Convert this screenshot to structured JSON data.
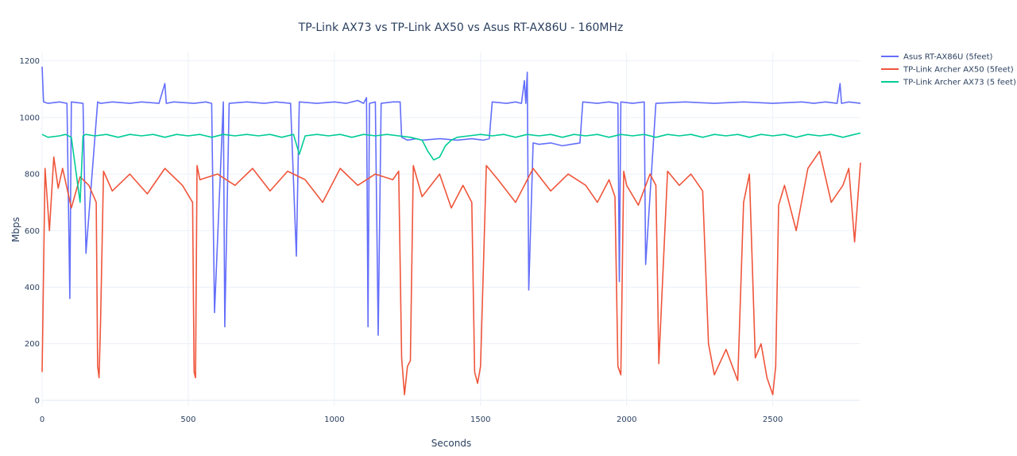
{
  "chart_data": {
    "type": "line",
    "title": "TP-Link AX73 vs TP-Link AX50 vs Asus RT-AX86U - 160MHz",
    "xlabel": "Seconds",
    "ylabel": "Mbps",
    "xlim": [
      0,
      2800
    ],
    "ylim": [
      -20,
      1230
    ],
    "xticks": [
      0,
      500,
      1000,
      1500,
      2000,
      2500
    ],
    "yticks": [
      0,
      200,
      400,
      600,
      800,
      1000,
      1200
    ],
    "grid": true,
    "legend_position": "top-right",
    "series": [
      {
        "name": "Asus RT-AX86U (5feet)",
        "color": "#636efa",
        "x": [
          0,
          5,
          20,
          60,
          85,
          95,
          100,
          140,
          150,
          190,
          200,
          240,
          300,
          340,
          400,
          420,
          425,
          450,
          520,
          560,
          580,
          590,
          620,
          625,
          640,
          700,
          760,
          800,
          850,
          870,
          880,
          940,
          1000,
          1040,
          1080,
          1100,
          1110,
          1115,
          1120,
          1140,
          1150,
          1160,
          1200,
          1225,
          1230,
          1250,
          1280,
          1300,
          1360,
          1420,
          1470,
          1510,
          1530,
          1540,
          1590,
          1620,
          1640,
          1650,
          1655,
          1660,
          1665,
          1680,
          1700,
          1740,
          1780,
          1810,
          1840,
          1850,
          1900,
          1940,
          1970,
          1975,
          1980,
          2020,
          2060,
          2065,
          2100,
          2200,
          2300,
          2400,
          2500,
          2600,
          2640,
          2680,
          2720,
          2730,
          2735,
          2760,
          2800
        ],
        "y": [
          1180,
          1055,
          1050,
          1055,
          1050,
          360,
          1055,
          1050,
          520,
          1055,
          1050,
          1055,
          1050,
          1055,
          1050,
          1120,
          1050,
          1055,
          1050,
          1055,
          1050,
          310,
          1055,
          260,
          1050,
          1055,
          1050,
          1055,
          1050,
          510,
          1055,
          1050,
          1055,
          1050,
          1060,
          1050,
          1070,
          260,
          1050,
          1055,
          230,
          1050,
          1055,
          1055,
          930,
          920,
          925,
          920,
          925,
          920,
          925,
          920,
          925,
          1055,
          1050,
          1055,
          1050,
          1130,
          1050,
          1160,
          390,
          910,
          905,
          910,
          900,
          905,
          910,
          1055,
          1050,
          1055,
          1050,
          420,
          1055,
          1050,
          1055,
          480,
          1050,
          1055,
          1050,
          1055,
          1050,
          1055,
          1050,
          1055,
          1050,
          1120,
          1050,
          1055,
          1050
        ]
      },
      {
        "name": "TP-Link Archer AX50 (5feet)",
        "color": "#ef553b",
        "x": [
          0,
          10,
          25,
          40,
          55,
          70,
          100,
          130,
          160,
          185,
          190,
          195,
          200,
          210,
          240,
          300,
          360,
          420,
          480,
          515,
          520,
          525,
          530,
          540,
          600,
          660,
          720,
          780,
          840,
          900,
          960,
          1020,
          1080,
          1140,
          1200,
          1220,
          1230,
          1240,
          1250,
          1260,
          1270,
          1300,
          1360,
          1400,
          1440,
          1470,
          1480,
          1490,
          1500,
          1520,
          1560,
          1620,
          1680,
          1740,
          1800,
          1860,
          1900,
          1940,
          1960,
          1970,
          1980,
          1990,
          2000,
          2040,
          2080,
          2100,
          2110,
          2140,
          2180,
          2220,
          2260,
          2280,
          2300,
          2340,
          2380,
          2400,
          2420,
          2440,
          2460,
          2480,
          2500,
          2510,
          2520,
          2540,
          2580,
          2620,
          2660,
          2700,
          2740,
          2760,
          2780,
          2800
        ],
        "y": [
          100,
          820,
          600,
          860,
          750,
          820,
          680,
          790,
          760,
          700,
          120,
          80,
          280,
          810,
          740,
          800,
          730,
          820,
          760,
          700,
          100,
          80,
          830,
          780,
          800,
          760,
          820,
          740,
          810,
          780,
          700,
          820,
          760,
          800,
          780,
          810,
          150,
          20,
          120,
          140,
          830,
          720,
          800,
          680,
          760,
          700,
          100,
          60,
          120,
          830,
          780,
          700,
          820,
          740,
          800,
          760,
          700,
          780,
          720,
          120,
          90,
          810,
          760,
          690,
          800,
          760,
          130,
          810,
          760,
          800,
          740,
          200,
          90,
          180,
          70,
          700,
          800,
          150,
          200,
          80,
          20,
          120,
          690,
          760,
          600,
          820,
          880,
          700,
          760,
          820,
          560,
          840
        ]
      },
      {
        "name": "TP-Link Archer AX73 (5 feet)",
        "color": "#00cc96",
        "x": [
          0,
          20,
          60,
          80,
          100,
          130,
          140,
          150,
          180,
          220,
          260,
          300,
          340,
          380,
          420,
          460,
          500,
          540,
          580,
          620,
          660,
          700,
          740,
          780,
          820,
          860,
          880,
          900,
          940,
          980,
          1020,
          1060,
          1100,
          1140,
          1180,
          1220,
          1260,
          1300,
          1320,
          1340,
          1360,
          1380,
          1400,
          1420,
          1460,
          1500,
          1540,
          1580,
          1620,
          1660,
          1700,
          1740,
          1780,
          1820,
          1860,
          1900,
          1940,
          1980,
          2020,
          2060,
          2100,
          2140,
          2180,
          2220,
          2260,
          2300,
          2340,
          2380,
          2420,
          2460,
          2500,
          2540,
          2580,
          2620,
          2660,
          2700,
          2740,
          2780,
          2800
        ],
        "y": [
          940,
          930,
          935,
          940,
          930,
          700,
          935,
          940,
          935,
          940,
          930,
          940,
          935,
          940,
          930,
          940,
          935,
          940,
          930,
          940,
          935,
          940,
          935,
          940,
          930,
          940,
          870,
          935,
          940,
          935,
          940,
          930,
          940,
          935,
          940,
          935,
          930,
          920,
          880,
          850,
          860,
          900,
          920,
          930,
          935,
          940,
          935,
          940,
          930,
          940,
          935,
          940,
          930,
          940,
          935,
          940,
          930,
          940,
          935,
          940,
          930,
          940,
          935,
          940,
          930,
          940,
          935,
          940,
          930,
          940,
          935,
          940,
          930,
          940,
          935,
          940,
          930,
          940,
          945
        ]
      }
    ]
  }
}
